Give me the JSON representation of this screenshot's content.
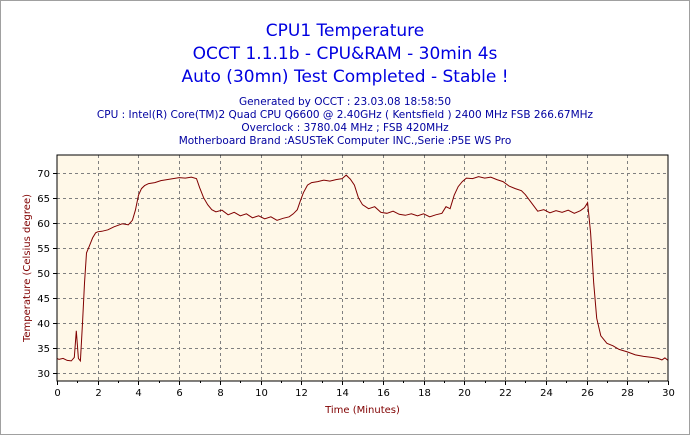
{
  "header": {
    "title1": "CPU1 Temperature",
    "title2": "OCCT 1.1.1b - CPU&RAM - 30min 4s",
    "title3": "Auto (30mn) Test Completed - Stable !",
    "generated": "Generated by OCCT : 23.03.08 18:58:50",
    "cpu": "CPU : Intel(R) Core(TM)2 Quad CPU Q6600 @ 2.40GHz ( Kentsfield ) 2400 MHz FSB 266.67MHz",
    "overclock": "Overclock : 3780.04 MHz ; FSB 420MHz",
    "motherboard": "Motherboard Brand :ASUSTeK Computer INC.,Serie :P5E WS Pro"
  },
  "chart_data": {
    "type": "line",
    "title": "CPU1 Temperature",
    "xlabel": "Time (Minutes)",
    "ylabel": "Temperature (Celsius degree)",
    "xlim": [
      0,
      30
    ],
    "ylim": [
      28.5,
      73.5
    ],
    "xticks": [
      0,
      2,
      4,
      6,
      8,
      10,
      12,
      14,
      16,
      18,
      20,
      22,
      24,
      26,
      28,
      30
    ],
    "yticks": [
      30,
      35,
      40,
      45,
      50,
      55,
      60,
      65,
      70
    ],
    "grid": true,
    "legend": "none",
    "colors": {
      "line": "#800000",
      "plot_bg": "#fff8e8",
      "grid": "#808080",
      "title": "#0000e0",
      "info": "#0000a0"
    },
    "series": [
      {
        "x": [
          0,
          0.1,
          0.3,
          0.5,
          0.7,
          0.85,
          0.95,
          1.05,
          1.15,
          1.25,
          1.35,
          1.45,
          1.6,
          1.75,
          1.9,
          2.0,
          2.2,
          2.5,
          2.8,
          3.0,
          3.2,
          3.5,
          3.7,
          3.85,
          4.0,
          4.15,
          4.3,
          4.5,
          4.8,
          5.1,
          5.4,
          5.7,
          6.0,
          6.3,
          6.6,
          6.85,
          7.0,
          7.2,
          7.4,
          7.6,
          7.8,
          8.1,
          8.4,
          8.7,
          9.0,
          9.3,
          9.6,
          9.9,
          10.2,
          10.5,
          10.8,
          11.1,
          11.4,
          11.6,
          11.8,
          11.95,
          12.1,
          12.3,
          12.5,
          12.8,
          13.1,
          13.4,
          13.7,
          14.0,
          14.2,
          14.4,
          14.6,
          14.8,
          15.0,
          15.3,
          15.6,
          15.9,
          16.2,
          16.5,
          16.8,
          17.1,
          17.4,
          17.7,
          18.0,
          18.3,
          18.6,
          18.9,
          19.1,
          19.3,
          19.5,
          19.7,
          19.9,
          20.1,
          20.4,
          20.7,
          21.0,
          21.3,
          21.6,
          21.9,
          22.2,
          22.5,
          22.8,
          23.0,
          23.2,
          23.4,
          23.6,
          23.9,
          24.2,
          24.5,
          24.8,
          25.1,
          25.4,
          25.7,
          25.9,
          26.05,
          26.2,
          26.35,
          26.5,
          26.7,
          27.0,
          27.3,
          27.6,
          28.0,
          28.4,
          28.8,
          29.2,
          29.5,
          29.7,
          29.85,
          30
        ],
        "y": [
          33,
          32.8,
          33,
          32.6,
          32.5,
          33.2,
          38.5,
          33,
          32.5,
          40,
          48,
          54,
          55.5,
          57,
          58,
          58.2,
          58.3,
          58.6,
          59.2,
          59.5,
          59.8,
          59.6,
          60.5,
          62.5,
          65.5,
          66.8,
          67.4,
          67.8,
          68,
          68.4,
          68.6,
          68.8,
          69,
          68.9,
          69.1,
          68.8,
          67,
          65,
          63.6,
          62.6,
          62.2,
          62.5,
          61.6,
          62.1,
          61.4,
          61.8,
          61,
          61.4,
          60.8,
          61.2,
          60.5,
          60.9,
          61.2,
          61.8,
          62.6,
          64.4,
          66,
          67.5,
          68,
          68.2,
          68.5,
          68.3,
          68.6,
          68.8,
          69.5,
          68.7,
          67.5,
          65,
          63.6,
          62.8,
          63.2,
          62.1,
          61.9,
          62.3,
          61.7,
          61.5,
          61.8,
          61.4,
          61.8,
          61.2,
          61.6,
          61.9,
          63.2,
          62.8,
          65.5,
          67.2,
          68.2,
          68.9,
          68.8,
          69.2,
          68.9,
          69.1,
          68.6,
          68.2,
          67.3,
          66.8,
          66.4,
          65.6,
          64.5,
          63.4,
          62.3,
          62.6,
          62.0,
          62.4,
          62.1,
          62.5,
          61.9,
          62.4,
          63.0,
          64.0,
          58,
          48,
          41,
          37.5,
          36,
          35.5,
          34.8,
          34.3,
          33.7,
          33.4,
          33.2,
          33,
          32.7,
          33.1,
          32.6
        ]
      }
    ]
  }
}
